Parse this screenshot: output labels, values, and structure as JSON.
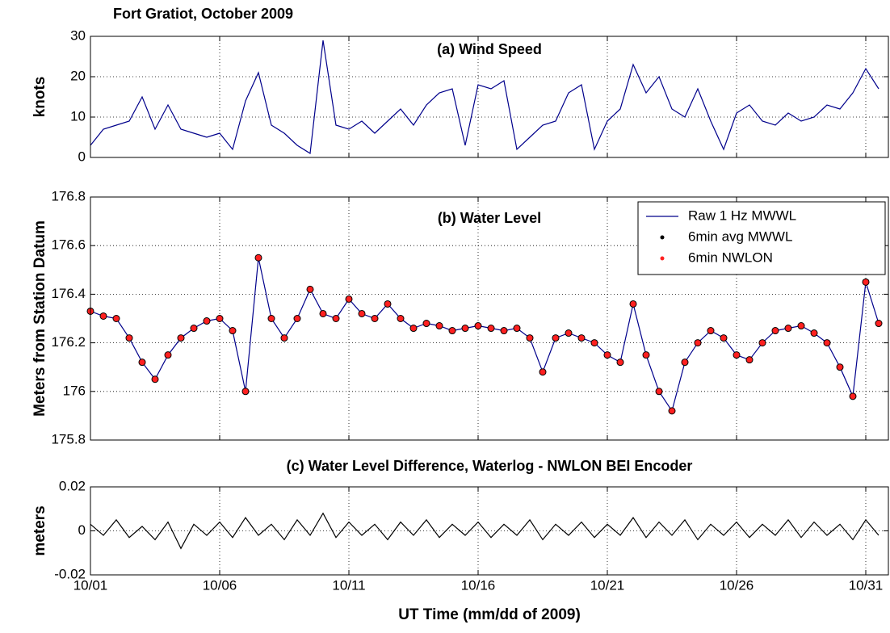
{
  "title": "Fort Gratiot,  October 2009",
  "xlabel": "UT Time (mm/dd of 2009)",
  "chart_data": [
    {
      "type": "line",
      "title": "(a) Wind Speed",
      "ylabel": "knots",
      "x": [
        1,
        1.5,
        2,
        2.5,
        3,
        3.5,
        4,
        4.5,
        5,
        5.5,
        6,
        6.5,
        7,
        7.5,
        8,
        8.5,
        9,
        9.5,
        10,
        10.5,
        11,
        11.5,
        12,
        12.5,
        13,
        13.5,
        14,
        14.5,
        15,
        15.5,
        16,
        16.5,
        17,
        17.5,
        18,
        18.5,
        19,
        19.5,
        20,
        20.5,
        21,
        21.5,
        22,
        22.5,
        23,
        23.5,
        24,
        24.5,
        25,
        25.5,
        26,
        26.5,
        27,
        27.5,
        28,
        28.5,
        29,
        29.5,
        30,
        30.5,
        31,
        31.5
      ],
      "series": [
        {
          "name": "Wind Speed",
          "color": "#00008b",
          "style": "line",
          "values": [
            3,
            7,
            8,
            9,
            15,
            7,
            13,
            7,
            6,
            5,
            6,
            2,
            14,
            21,
            8,
            6,
            3,
            1,
            29,
            8,
            7,
            9,
            6,
            9,
            12,
            8,
            13,
            16,
            17,
            3,
            18,
            17,
            19,
            2,
            5,
            8,
            9,
            16,
            18,
            2,
            9,
            12,
            23,
            16,
            20,
            12,
            10,
            17,
            9,
            2,
            11,
            13,
            9,
            8,
            11,
            9,
            10,
            13,
            12,
            16,
            22,
            17
          ]
        }
      ],
      "xlim": [
        1,
        31.875
      ],
      "xticks": [
        {
          "value": 1,
          "label": "10/01"
        },
        {
          "value": 6,
          "label": "10/06"
        },
        {
          "value": 11,
          "label": "10/11"
        },
        {
          "value": 16,
          "label": "10/16"
        },
        {
          "value": 21,
          "label": "10/21"
        },
        {
          "value": 26,
          "label": "10/26"
        },
        {
          "value": 31,
          "label": "10/31"
        }
      ],
      "ylim": [
        0,
        30
      ],
      "yticks": [
        0,
        10,
        20,
        30
      ],
      "grid": true,
      "show_xtick_labels": false
    },
    {
      "type": "line",
      "title": "(b) Water Level",
      "ylabel": "Meters from Station Datum",
      "x": [
        1,
        1.5,
        2,
        2.5,
        3,
        3.5,
        4,
        4.5,
        5,
        5.5,
        6,
        6.5,
        7,
        7.5,
        8,
        8.5,
        9,
        9.5,
        10,
        10.5,
        11,
        11.5,
        12,
        12.5,
        13,
        13.5,
        14,
        14.5,
        15,
        15.5,
        16,
        16.5,
        17,
        17.5,
        18,
        18.5,
        19,
        19.5,
        20,
        20.5,
        21,
        21.5,
        22,
        22.5,
        23,
        23.5,
        24,
        24.5,
        25,
        25.5,
        26,
        26.5,
        27,
        27.5,
        28,
        28.5,
        29,
        29.5,
        30,
        30.5,
        31,
        31.5
      ],
      "series": [
        {
          "name": "Raw 1 Hz MWWL",
          "color": "#00008b",
          "style": "line",
          "values": [
            176.33,
            176.31,
            176.3,
            176.22,
            176.12,
            176.05,
            176.15,
            176.22,
            176.26,
            176.29,
            176.3,
            176.25,
            176.0,
            176.55,
            176.3,
            176.22,
            176.3,
            176.42,
            176.32,
            176.3,
            176.38,
            176.32,
            176.3,
            176.36,
            176.3,
            176.26,
            176.28,
            176.27,
            176.25,
            176.26,
            176.27,
            176.26,
            176.25,
            176.26,
            176.22,
            176.08,
            176.22,
            176.24,
            176.22,
            176.2,
            176.15,
            176.12,
            176.36,
            176.15,
            176.0,
            175.92,
            176.12,
            176.2,
            176.25,
            176.22,
            176.15,
            176.13,
            176.2,
            176.25,
            176.26,
            176.27,
            176.24,
            176.2,
            176.1,
            175.98,
            176.45,
            176.28
          ]
        },
        {
          "name": "6min avg MWWL",
          "color": "#000000",
          "style": "dots",
          "values": [
            176.33,
            176.31,
            176.3,
            176.22,
            176.12,
            176.05,
            176.15,
            176.22,
            176.26,
            176.29,
            176.3,
            176.25,
            176.0,
            176.55,
            176.3,
            176.22,
            176.3,
            176.42,
            176.32,
            176.3,
            176.38,
            176.32,
            176.3,
            176.36,
            176.3,
            176.26,
            176.28,
            176.27,
            176.25,
            176.26,
            176.27,
            176.26,
            176.25,
            176.26,
            176.22,
            176.08,
            176.22,
            176.24,
            176.22,
            176.2,
            176.15,
            176.12,
            176.36,
            176.15,
            176.0,
            175.92,
            176.12,
            176.2,
            176.25,
            176.22,
            176.15,
            176.13,
            176.2,
            176.25,
            176.26,
            176.27,
            176.24,
            176.2,
            176.1,
            175.98,
            176.45,
            176.28
          ]
        },
        {
          "name": "6min NWLON",
          "color": "#ff2020",
          "style": "dots",
          "values": [
            176.33,
            176.31,
            176.3,
            176.22,
            176.12,
            176.05,
            176.15,
            176.22,
            176.26,
            176.29,
            176.3,
            176.25,
            176.0,
            176.55,
            176.3,
            176.22,
            176.3,
            176.42,
            176.32,
            176.3,
            176.38,
            176.32,
            176.3,
            176.36,
            176.3,
            176.26,
            176.28,
            176.27,
            176.25,
            176.26,
            176.27,
            176.26,
            176.25,
            176.26,
            176.22,
            176.08,
            176.22,
            176.24,
            176.22,
            176.2,
            176.15,
            176.12,
            176.36,
            176.15,
            176.0,
            175.92,
            176.12,
            176.2,
            176.25,
            176.22,
            176.15,
            176.13,
            176.2,
            176.25,
            176.26,
            176.27,
            176.24,
            176.2,
            176.1,
            175.98,
            176.45,
            176.28
          ]
        }
      ],
      "xlim": [
        1,
        31.875
      ],
      "xticks": [
        {
          "value": 1,
          "label": "10/01"
        },
        {
          "value": 6,
          "label": "10/06"
        },
        {
          "value": 11,
          "label": "10/11"
        },
        {
          "value": 16,
          "label": "10/16"
        },
        {
          "value": 21,
          "label": "10/21"
        },
        {
          "value": 26,
          "label": "10/26"
        },
        {
          "value": 31,
          "label": "10/31"
        }
      ],
      "ylim": [
        175.8,
        176.8
      ],
      "yticks": [
        175.8,
        176,
        176.2,
        176.4,
        176.6,
        176.8
      ],
      "grid": true,
      "legend": "upper right",
      "show_xtick_labels": false
    },
    {
      "type": "line",
      "title": "(c) Water Level Difference, Waterlog - NWLON BEI Encoder",
      "ylabel": "meters",
      "x": [
        1,
        1.5,
        2,
        2.5,
        3,
        3.5,
        4,
        4.5,
        5,
        5.5,
        6,
        6.5,
        7,
        7.5,
        8,
        8.5,
        9,
        9.5,
        10,
        10.5,
        11,
        11.5,
        12,
        12.5,
        13,
        13.5,
        14,
        14.5,
        15,
        15.5,
        16,
        16.5,
        17,
        17.5,
        18,
        18.5,
        19,
        19.5,
        20,
        20.5,
        21,
        21.5,
        22,
        22.5,
        23,
        23.5,
        24,
        24.5,
        25,
        25.5,
        26,
        26.5,
        27,
        27.5,
        28,
        28.5,
        29,
        29.5,
        30,
        30.5,
        31,
        31.5
      ],
      "series": [
        {
          "name": "Difference",
          "color": "#000000",
          "style": "line",
          "values": [
            0.003,
            -0.002,
            0.005,
            -0.003,
            0.002,
            -0.004,
            0.004,
            -0.008,
            0.003,
            -0.002,
            0.004,
            -0.003,
            0.006,
            -0.002,
            0.003,
            -0.004,
            0.005,
            -0.002,
            0.008,
            -0.003,
            0.004,
            -0.002,
            0.003,
            -0.004,
            0.004,
            -0.002,
            0.005,
            -0.003,
            0.003,
            -0.002,
            0.004,
            -0.003,
            0.003,
            -0.002,
            0.005,
            -0.004,
            0.003,
            -0.002,
            0.004,
            -0.003,
            0.003,
            -0.002,
            0.006,
            -0.003,
            0.004,
            -0.002,
            0.005,
            -0.004,
            0.003,
            -0.002,
            0.004,
            -0.003,
            0.003,
            -0.002,
            0.005,
            -0.003,
            0.004,
            -0.002,
            0.003,
            -0.004,
            0.005,
            -0.002
          ]
        }
      ],
      "xlim": [
        1,
        31.875
      ],
      "xticks": [
        {
          "value": 1,
          "label": "10/01"
        },
        {
          "value": 6,
          "label": "10/06"
        },
        {
          "value": 11,
          "label": "10/11"
        },
        {
          "value": 16,
          "label": "10/16"
        },
        {
          "value": 21,
          "label": "10/21"
        },
        {
          "value": 26,
          "label": "10/26"
        },
        {
          "value": 31,
          "label": "10/31"
        }
      ],
      "ylim": [
        -0.02,
        0.02
      ],
      "yticks": [
        -0.02,
        0,
        0.02
      ],
      "grid": true,
      "show_xtick_labels": true
    }
  ]
}
